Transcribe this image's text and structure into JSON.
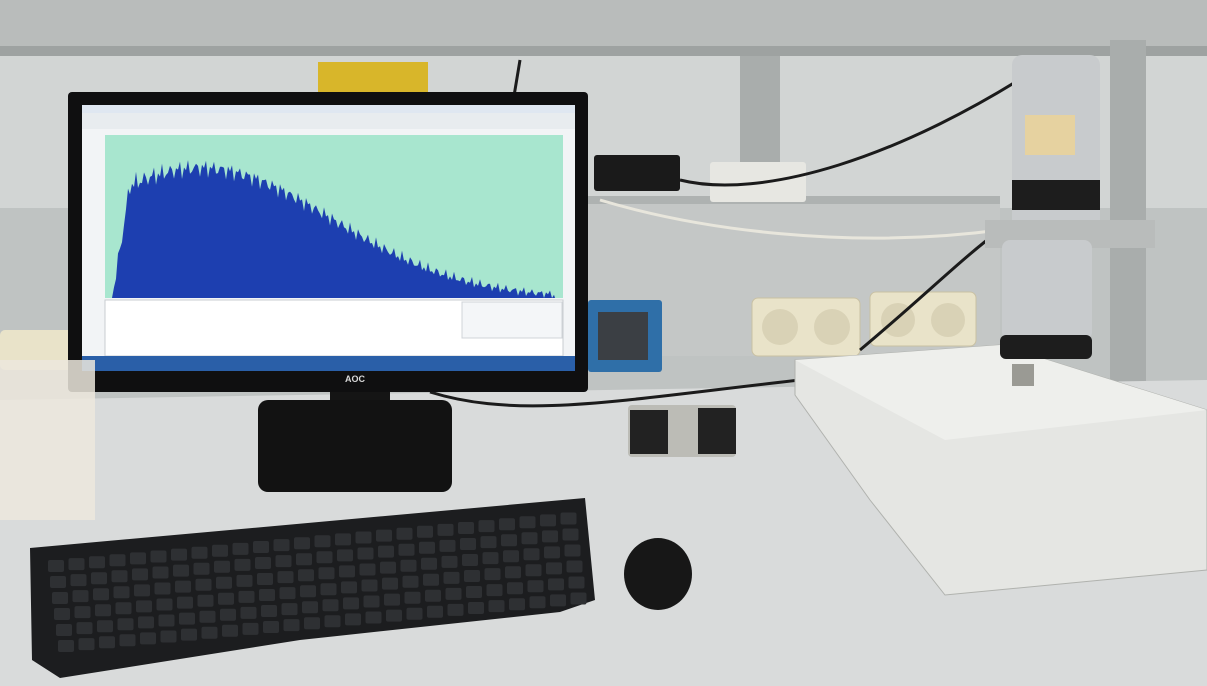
{
  "monitor": {
    "brand": "AOC"
  }
}
